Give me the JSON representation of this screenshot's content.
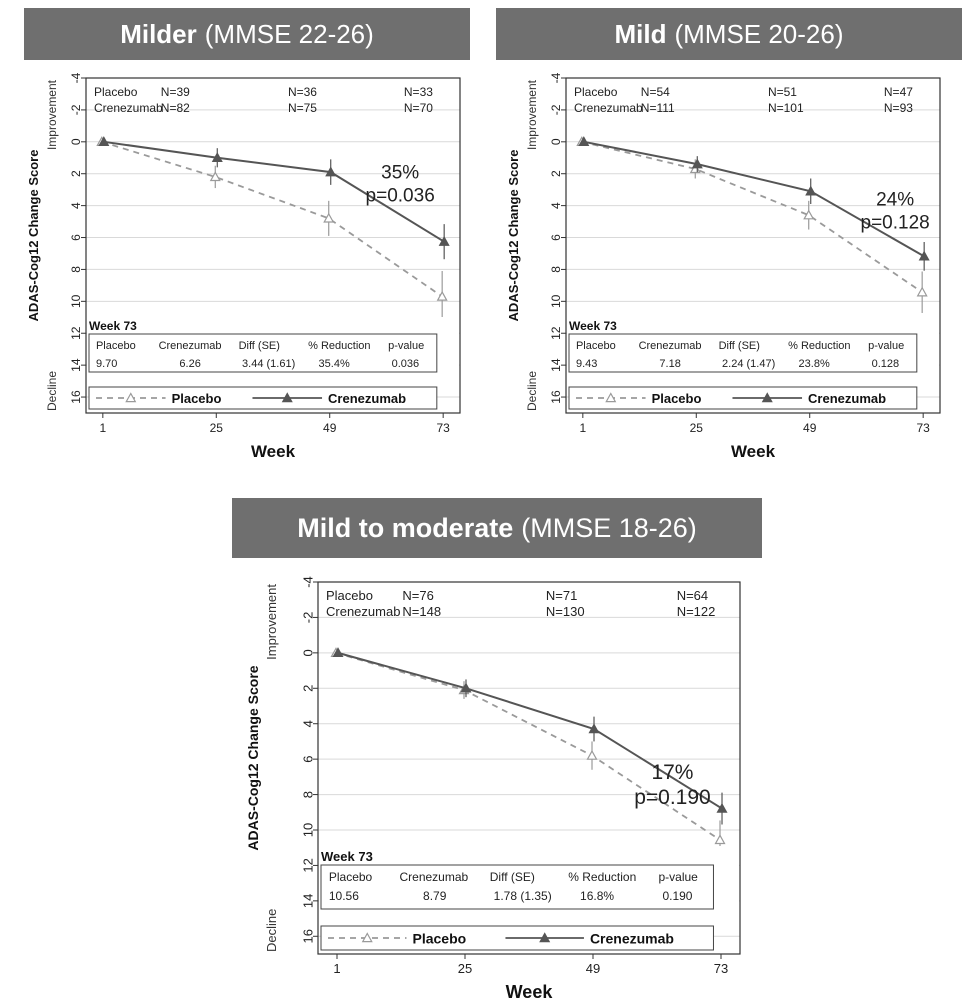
{
  "chart_data": [
    {
      "type": "line",
      "title_bold": "Milder",
      "title_rest": "(MMSE 22-26)",
      "xlabel": "Week",
      "ylabel": "ADAS-Cog12 Change Score",
      "ylabel_top": "Improvement",
      "ylabel_bottom": "Decline",
      "x": [
        1,
        25,
        49,
        73
      ],
      "x_ticks": [
        "1",
        "25",
        "49",
        "73"
      ],
      "y_ticks": [
        "-4",
        "-2",
        "0",
        "2",
        "4",
        "6",
        "8",
        "10",
        "12",
        "14",
        "16"
      ],
      "ylim": [
        -4,
        17
      ],
      "y_inverted": true,
      "grid": true,
      "series": [
        {
          "name": "Placebo",
          "values": [
            0,
            2.2,
            4.8,
            9.7
          ],
          "se": [
            0,
            0.7,
            1.1,
            1.6
          ],
          "color": "#9a9a9a",
          "style": "dashed",
          "marker": "open-triangle"
        },
        {
          "name": "Crenezumab",
          "values": [
            0,
            1.0,
            1.9,
            6.26
          ],
          "se": [
            0,
            0.6,
            0.8,
            1.1
          ],
          "color": "#555555",
          "style": "solid",
          "marker": "filled-triangle"
        }
      ],
      "n_rows": [
        {
          "label": "Placebo",
          "n": [
            "N=39",
            "N=36",
            "N=33"
          ]
        },
        {
          "label": "Crenezumab",
          "n": [
            "N=82",
            "N=75",
            "N=70"
          ]
        }
      ],
      "annotation": {
        "percent": "35%",
        "p": "p=0.036"
      },
      "week73": {
        "label": "Week 73",
        "headers": [
          "Placebo",
          "Crenezumab",
          "Diff (SE)",
          "% Reduction",
          "p-value"
        ],
        "values": [
          "9.70",
          "6.26",
          "3.44 (1.61)",
          "35.4%",
          "0.036"
        ]
      }
    },
    {
      "type": "line",
      "title_bold": "Mild",
      "title_rest": "(MMSE 20-26)",
      "xlabel": "Week",
      "ylabel": "ADAS-Cog12 Change Score",
      "ylabel_top": "Improvement",
      "ylabel_bottom": "Decline",
      "x": [
        1,
        25,
        49,
        73
      ],
      "x_ticks": [
        "1",
        "25",
        "49",
        "73"
      ],
      "y_ticks": [
        "-4",
        "-2",
        "0",
        "2",
        "4",
        "6",
        "8",
        "10",
        "12",
        "14",
        "16"
      ],
      "ylim": [
        -4,
        17
      ],
      "y_inverted": true,
      "grid": true,
      "series": [
        {
          "name": "Placebo",
          "values": [
            0,
            1.7,
            4.6,
            9.43
          ],
          "se": [
            0,
            0.6,
            0.9,
            1.3
          ],
          "color": "#9a9a9a",
          "style": "dashed",
          "marker": "open-triangle"
        },
        {
          "name": "Crenezumab",
          "values": [
            0,
            1.4,
            3.1,
            7.18
          ],
          "se": [
            0,
            0.5,
            0.8,
            0.9
          ],
          "color": "#555555",
          "style": "solid",
          "marker": "filled-triangle"
        }
      ],
      "n_rows": [
        {
          "label": "Placebo",
          "n": [
            "N=54",
            "N=51",
            "N=47"
          ]
        },
        {
          "label": "Crenezumab",
          "n": [
            "N=111",
            "N=101",
            "N=93"
          ]
        }
      ],
      "annotation": {
        "percent": "24%",
        "p": "p=0.128"
      },
      "week73": {
        "label": "Week 73",
        "headers": [
          "Placebo",
          "Crenezumab",
          "Diff (SE)",
          "% Reduction",
          "p-value"
        ],
        "values": [
          "9.43",
          "7.18",
          "2.24 (1.47)",
          "23.8%",
          "0.128"
        ]
      }
    },
    {
      "type": "line",
      "title_bold": "Mild to moderate",
      "title_rest": "(MMSE 18-26)",
      "xlabel": "Week",
      "ylabel": "ADAS-Cog12 Change Score",
      "ylabel_top": "Improvement",
      "ylabel_bottom": "Decline",
      "x": [
        1,
        25,
        49,
        73
      ],
      "x_ticks": [
        "1",
        "25",
        "49",
        "73"
      ],
      "y_ticks": [
        "-4",
        "-2",
        "0",
        "2",
        "4",
        "6",
        "8",
        "10",
        "12",
        "14",
        "16"
      ],
      "ylim": [
        -4,
        17
      ],
      "y_inverted": true,
      "grid": true,
      "series": [
        {
          "name": "Placebo",
          "values": [
            0,
            2.1,
            5.8,
            10.56
          ],
          "se": [
            0,
            0.5,
            0.8,
            1.1
          ],
          "color": "#9a9a9a",
          "style": "dashed",
          "marker": "open-triangle"
        },
        {
          "name": "Crenezumab",
          "values": [
            0,
            2.0,
            4.3,
            8.79
          ],
          "se": [
            0,
            0.5,
            0.7,
            0.9
          ],
          "color": "#555555",
          "style": "solid",
          "marker": "filled-triangle"
        }
      ],
      "n_rows": [
        {
          "label": "Placebo",
          "n": [
            "N=76",
            "N=71",
            "N=64"
          ]
        },
        {
          "label": "Crenezumab",
          "n": [
            "N=148",
            "N=130",
            "N=122"
          ]
        }
      ],
      "annotation": {
        "percent": "17%",
        "p": "p=0.190"
      },
      "week73": {
        "label": "Week 73",
        "headers": [
          "Placebo",
          "Crenezumab",
          "Diff (SE)",
          "% Reduction",
          "p-value"
        ],
        "values": [
          "10.56",
          "8.79",
          "1.78 (1.35)",
          "16.8%",
          "0.190"
        ]
      }
    }
  ]
}
